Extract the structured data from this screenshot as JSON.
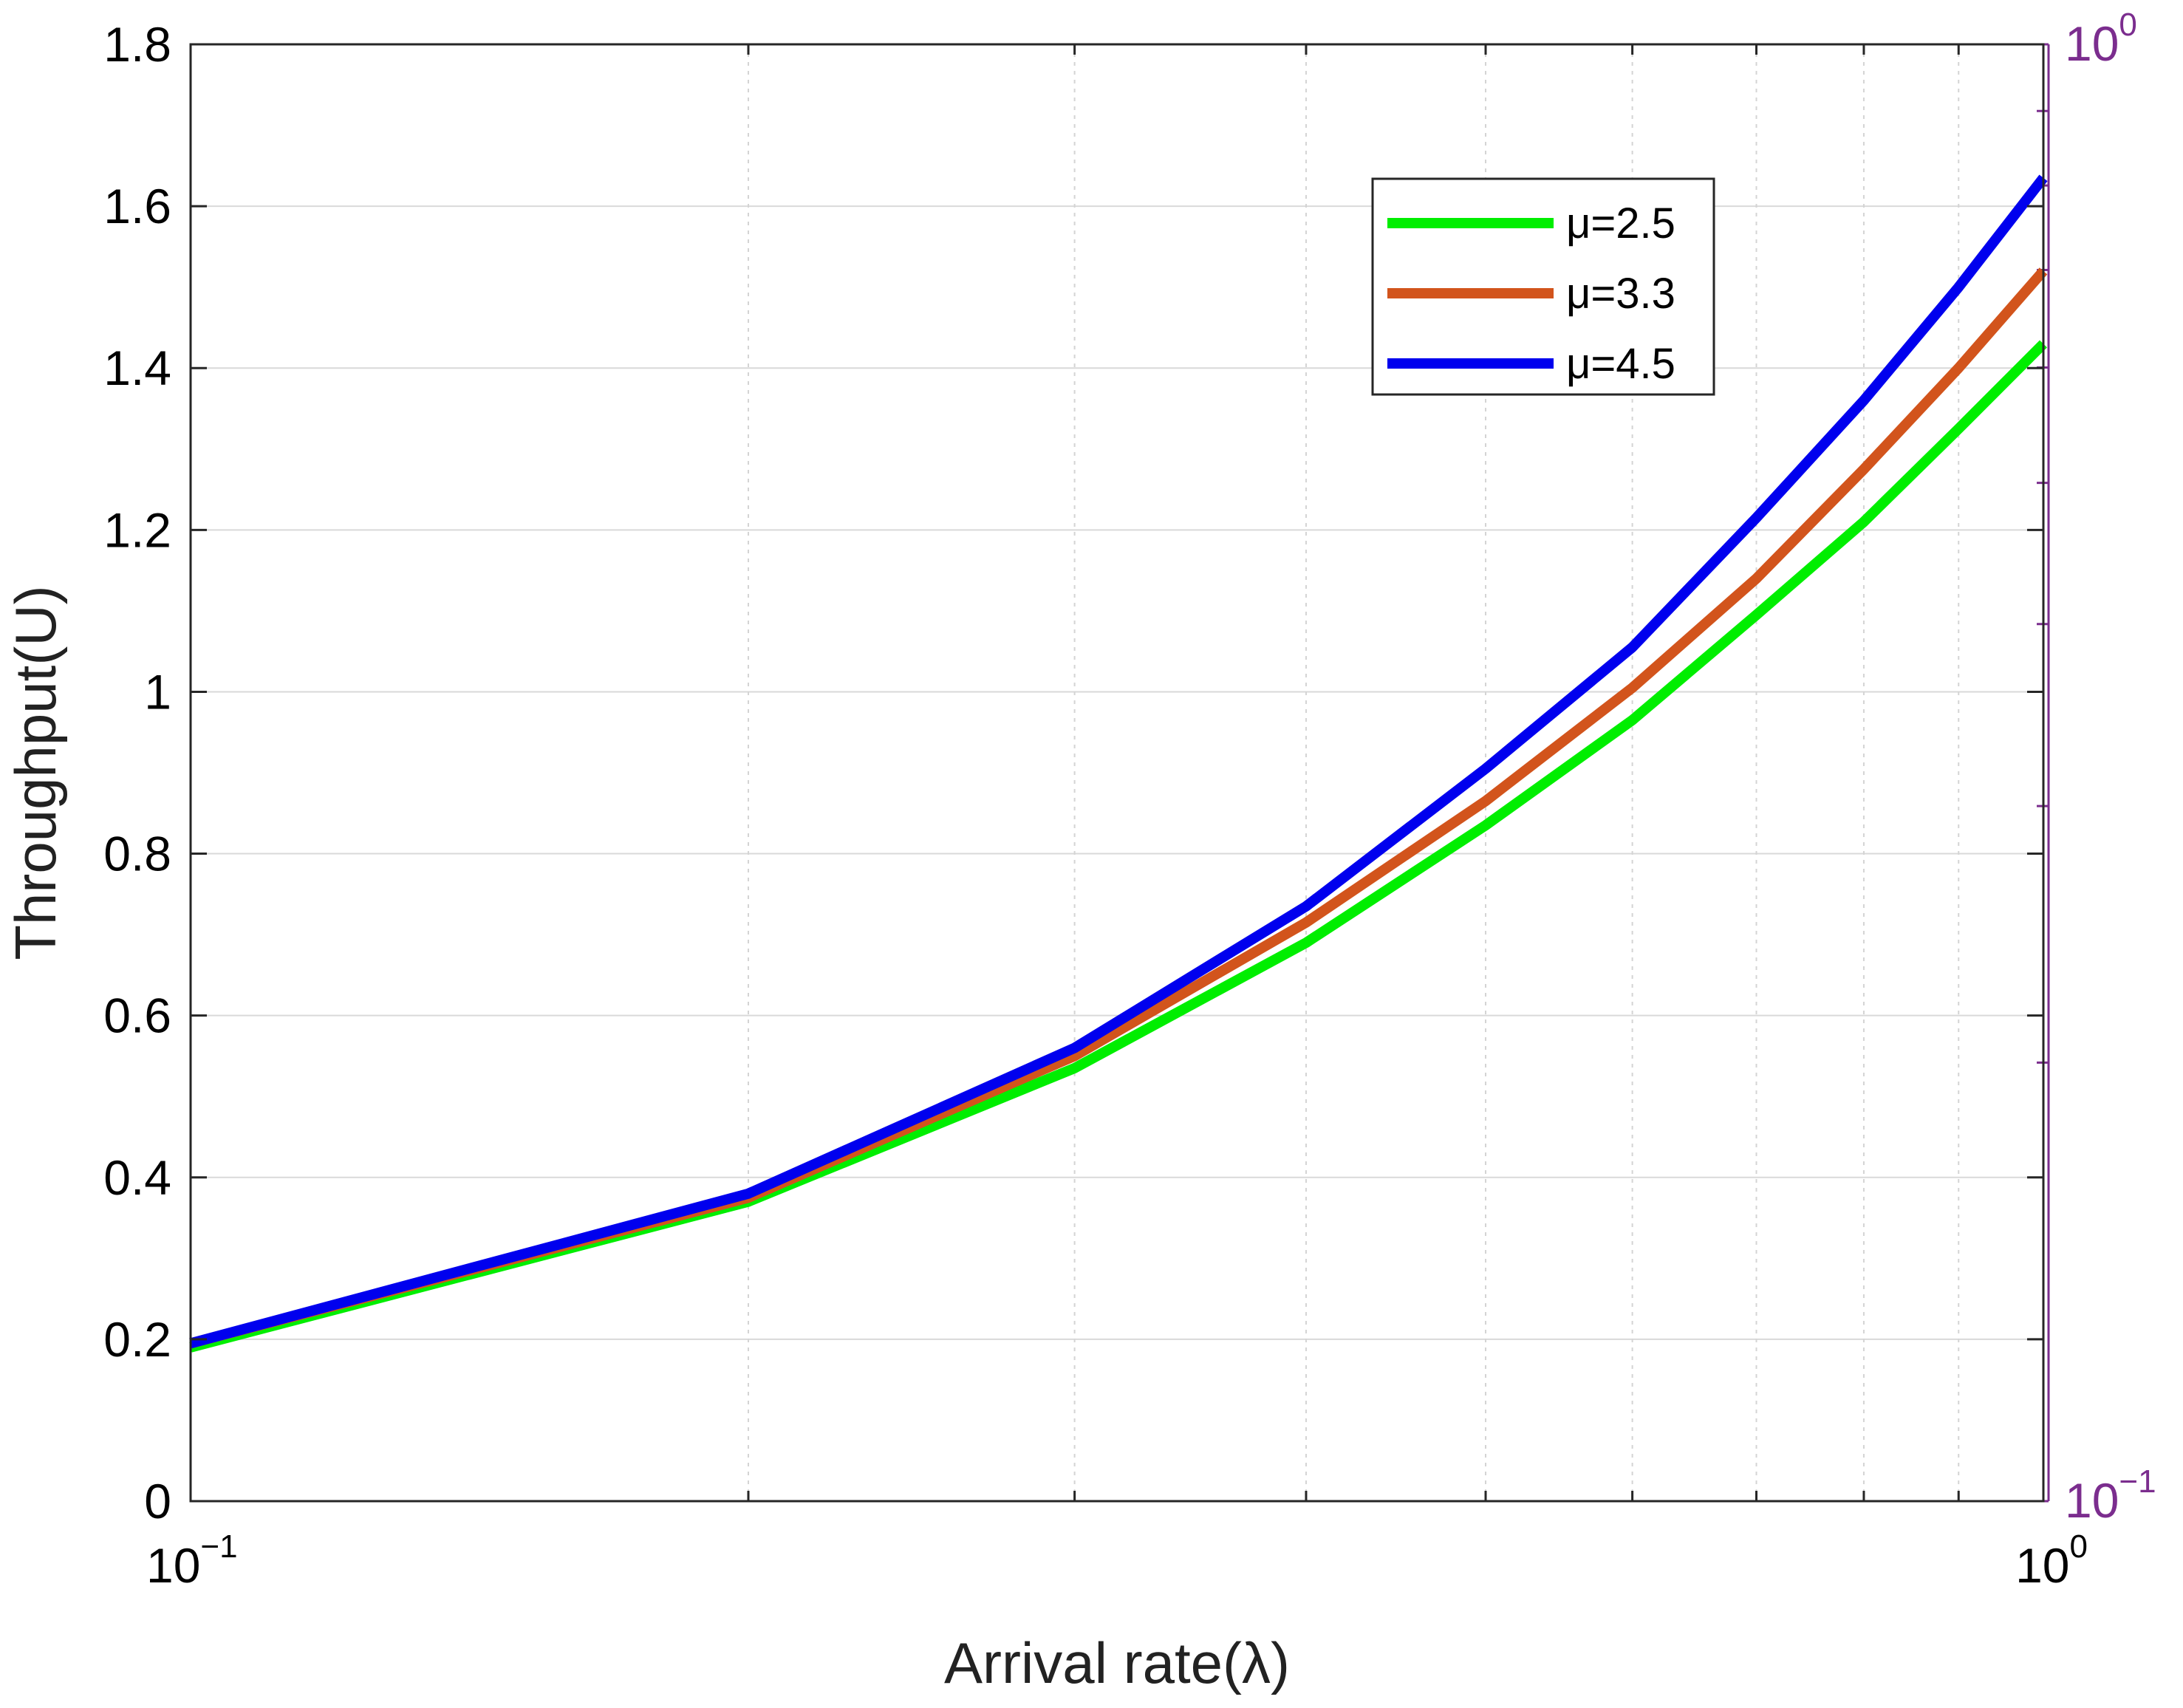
{
  "chart_data": {
    "type": "line",
    "xlabel": "Arrival rate(λ)",
    "ylabel": "Throughput(U)",
    "x_scale": "log",
    "xlim": [
      0.1,
      1
    ],
    "ylim": [
      0,
      1.8
    ],
    "x_ticks": [
      {
        "value": 0.1,
        "base": "10",
        "exp": "−1"
      },
      {
        "value": 1,
        "base": "10",
        "exp": "0"
      }
    ],
    "y_ticks": [
      {
        "value": 0,
        "label": "0"
      },
      {
        "value": 0.2,
        "label": "0.2"
      },
      {
        "value": 0.4,
        "label": "0.4"
      },
      {
        "value": 0.6,
        "label": "0.6"
      },
      {
        "value": 0.8,
        "label": "0.8"
      },
      {
        "value": 1.0,
        "label": "1"
      },
      {
        "value": 1.2,
        "label": "1.2"
      },
      {
        "value": 1.4,
        "label": "1.4"
      },
      {
        "value": 1.6,
        "label": "1.6"
      },
      {
        "value": 1.8,
        "label": "1.8"
      }
    ],
    "right_axis": {
      "scale": "log",
      "range": [
        0.1,
        1
      ],
      "color": "#7b2d8e",
      "ticks": [
        {
          "value": 0.1,
          "base": "10",
          "exp": "−1"
        },
        {
          "value": 1,
          "base": "10",
          "exp": "0"
        }
      ]
    },
    "grid": true,
    "legend_position": "top-right",
    "x": [
      0.1,
      0.2,
      0.3,
      0.4,
      0.5,
      0.6,
      0.7,
      0.8,
      0.9,
      1.0
    ],
    "series": [
      {
        "name": "μ=2.5",
        "color": "#00ee00",
        "values": [
          0.19,
          0.37,
          0.535,
          0.69,
          0.835,
          0.965,
          1.095,
          1.21,
          1.325,
          1.43
        ]
      },
      {
        "name": "μ=3.3",
        "color": "#d2541c",
        "values": [
          0.195,
          0.375,
          0.55,
          0.715,
          0.865,
          1.005,
          1.14,
          1.275,
          1.4,
          1.52
        ]
      },
      {
        "name": "μ=4.5",
        "color": "#0000ee",
        "values": [
          0.195,
          0.38,
          0.56,
          0.735,
          0.905,
          1.055,
          1.215,
          1.36,
          1.5,
          1.635
        ]
      }
    ]
  }
}
